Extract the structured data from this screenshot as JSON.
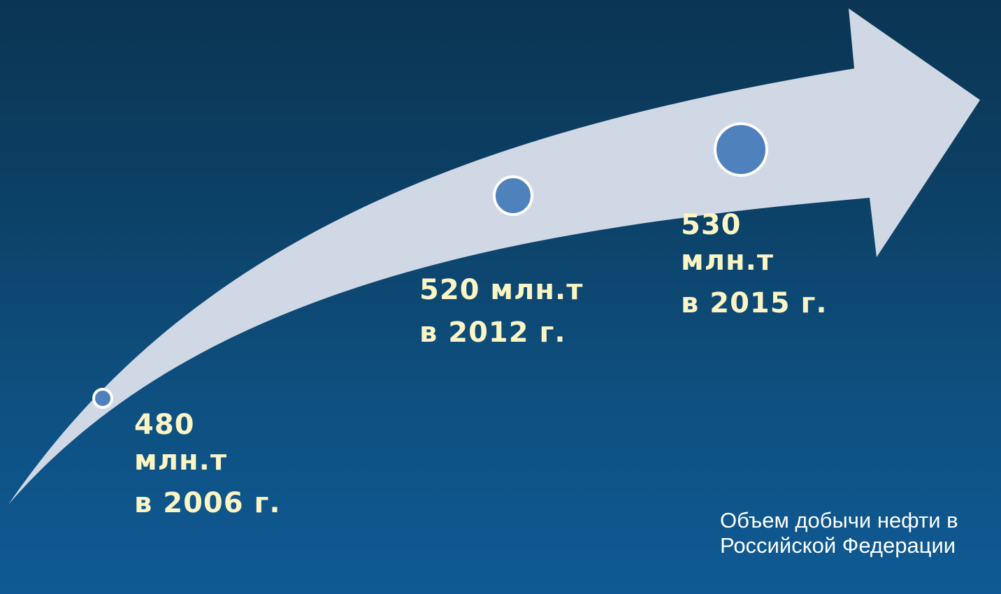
{
  "diagram": {
    "milestones": [
      {
        "amount": "480 млн.т",
        "year": "в 2006 г."
      },
      {
        "amount": "520 млн.т",
        "year": "в 2012 г."
      },
      {
        "amount": "530 млн.т",
        "year": "в 2015 г."
      }
    ],
    "caption": "Объем добычи нефти в Российской Федерации",
    "colors": {
      "background_top": "#0b3553",
      "background_bottom": "#0f5a94",
      "arrow_fill": "#d0d8e6",
      "marker_fill": "#4f81bd",
      "marker_stroke": "#ffffff",
      "label_text": "#fbf4c4",
      "caption_text": "#ffffff"
    }
  }
}
